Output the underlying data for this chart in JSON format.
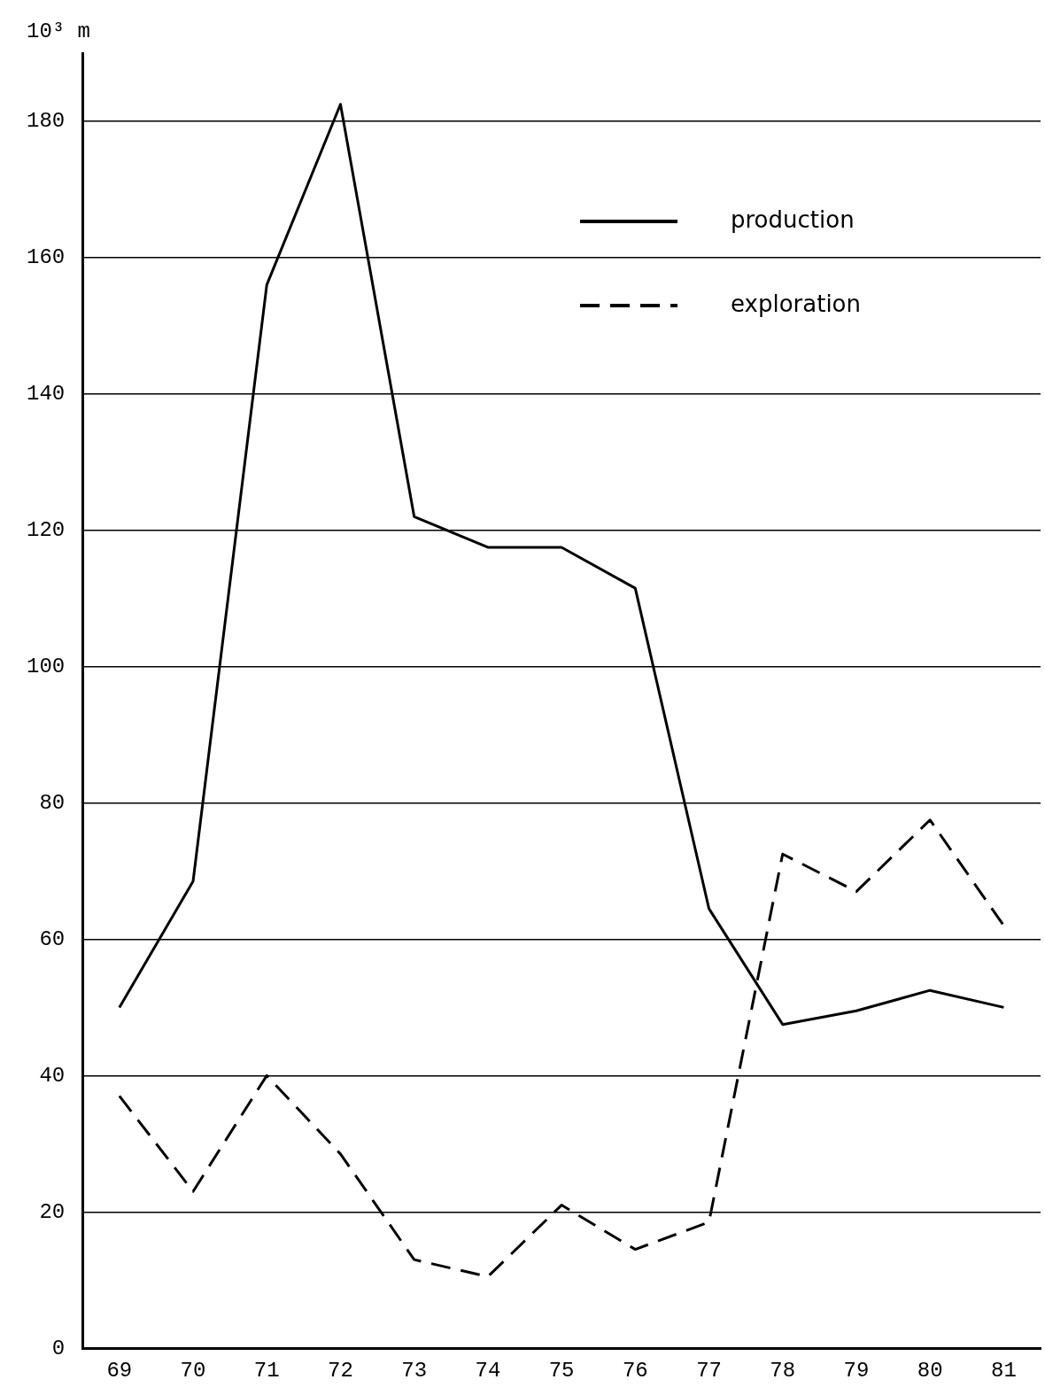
{
  "chart_data": {
    "type": "line",
    "ylabel": "10³ m",
    "categories": [
      "69",
      "70",
      "71",
      "72",
      "73",
      "74",
      "75",
      "76",
      "77",
      "78",
      "79",
      "80",
      "81"
    ],
    "series": [
      {
        "name": "production",
        "color": "#000000",
        "line_style": "solid",
        "values": [
          50,
          68.5,
          156,
          182.5,
          122,
          117.5,
          117.5,
          111.5,
          64.5,
          47.5,
          49.5,
          52.5,
          50
        ]
      },
      {
        "name": "exploration",
        "color": "#000000",
        "line_style": "dashed",
        "values": [
          37,
          23,
          40,
          28.5,
          13,
          10.5,
          21,
          14.5,
          18.5,
          72.5,
          67,
          77.5,
          62
        ]
      }
    ],
    "ylim": [
      0,
      190
    ],
    "yticks": [
      0,
      20,
      40,
      60,
      80,
      100,
      120,
      140,
      160,
      180
    ],
    "grid": "y",
    "legend": "top right",
    "marker": "none"
  }
}
